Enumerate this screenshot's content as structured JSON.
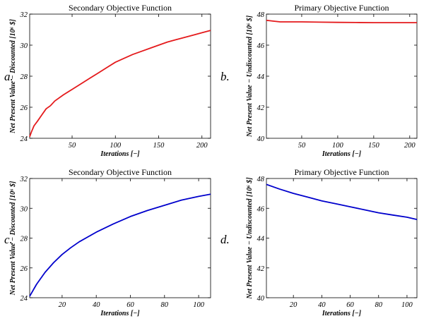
{
  "chart_data": [
    {
      "letter": "a.",
      "type": "line",
      "title": "Secondary Objective Function",
      "xlabel": "Iterations [−]",
      "ylabel": "Net Present Value − Discounted [10⁶ $]",
      "xlim": [
        1,
        210
      ],
      "ylim": [
        24,
        32
      ],
      "xticks": [
        50,
        100,
        150,
        200
      ],
      "yticks": [
        24,
        26,
        28,
        30,
        32
      ],
      "grid": false,
      "color": "#e41a1c",
      "series": [
        {
          "x": [
            1,
            3,
            6,
            10,
            15,
            20,
            25,
            30,
            40,
            50,
            60,
            70,
            80,
            90,
            100,
            110,
            120,
            130,
            140,
            150,
            160,
            170,
            180,
            190,
            200,
            210
          ],
          "y": [
            24.1,
            24.4,
            24.8,
            25.1,
            25.5,
            25.9,
            26.1,
            26.4,
            26.8,
            27.15,
            27.5,
            27.85,
            28.2,
            28.55,
            28.9,
            29.15,
            29.4,
            29.6,
            29.8,
            30.0,
            30.2,
            30.35,
            30.5,
            30.65,
            30.8,
            30.95
          ]
        }
      ]
    },
    {
      "letter": "b.",
      "type": "line",
      "title": "Primary Objective Function",
      "xlabel": "Iterations [−]",
      "ylabel": "Net Present Value − Undiscounted [10⁶ $]",
      "xlim": [
        1,
        210
      ],
      "ylim": [
        40,
        48
      ],
      "xticks": [
        50,
        100,
        150,
        200
      ],
      "yticks": [
        40,
        42,
        44,
        46,
        48
      ],
      "grid": false,
      "color": "#e41a1c",
      "series": [
        {
          "x": [
            1,
            10,
            20,
            30,
            50,
            75,
            100,
            125,
            150,
            175,
            200,
            210
          ],
          "y": [
            47.6,
            47.55,
            47.5,
            47.5,
            47.5,
            47.48,
            47.47,
            47.46,
            47.45,
            47.45,
            47.45,
            47.45
          ]
        }
      ]
    },
    {
      "letter": "c.",
      "type": "line",
      "title": "Secondary Objective Function",
      "xlabel": "Iterations [−]",
      "ylabel": "Net Present Value − Discounted [10⁶ $]",
      "xlim": [
        1,
        107
      ],
      "ylim": [
        24,
        32
      ],
      "xticks": [
        20,
        40,
        60,
        80,
        100
      ],
      "yticks": [
        24,
        26,
        28,
        30,
        32
      ],
      "grid": false,
      "color": "#0000cc",
      "series": [
        {
          "x": [
            1,
            5,
            10,
            15,
            20,
            25,
            30,
            40,
            50,
            60,
            70,
            80,
            90,
            100,
            107
          ],
          "y": [
            24.1,
            24.9,
            25.7,
            26.35,
            26.9,
            27.35,
            27.75,
            28.4,
            28.95,
            29.45,
            29.85,
            30.2,
            30.55,
            30.8,
            30.95
          ]
        }
      ]
    },
    {
      "letter": "d.",
      "type": "line",
      "title": "Primary Objective Function",
      "xlabel": "Iterations [−]",
      "ylabel": "Net Present Value − Undiscounted [10⁶ $]",
      "xlim": [
        1,
        107
      ],
      "ylim": [
        40,
        48
      ],
      "xticks": [
        20,
        40,
        60,
        80,
        100
      ],
      "yticks": [
        40,
        42,
        44,
        46,
        48
      ],
      "grid": false,
      "color": "#0000cc",
      "series": [
        {
          "x": [
            1,
            10,
            20,
            30,
            40,
            50,
            60,
            70,
            80,
            90,
            100,
            107
          ],
          "y": [
            47.6,
            47.3,
            47.0,
            46.75,
            46.5,
            46.3,
            46.1,
            45.9,
            45.7,
            45.55,
            45.4,
            45.25
          ]
        }
      ]
    }
  ]
}
